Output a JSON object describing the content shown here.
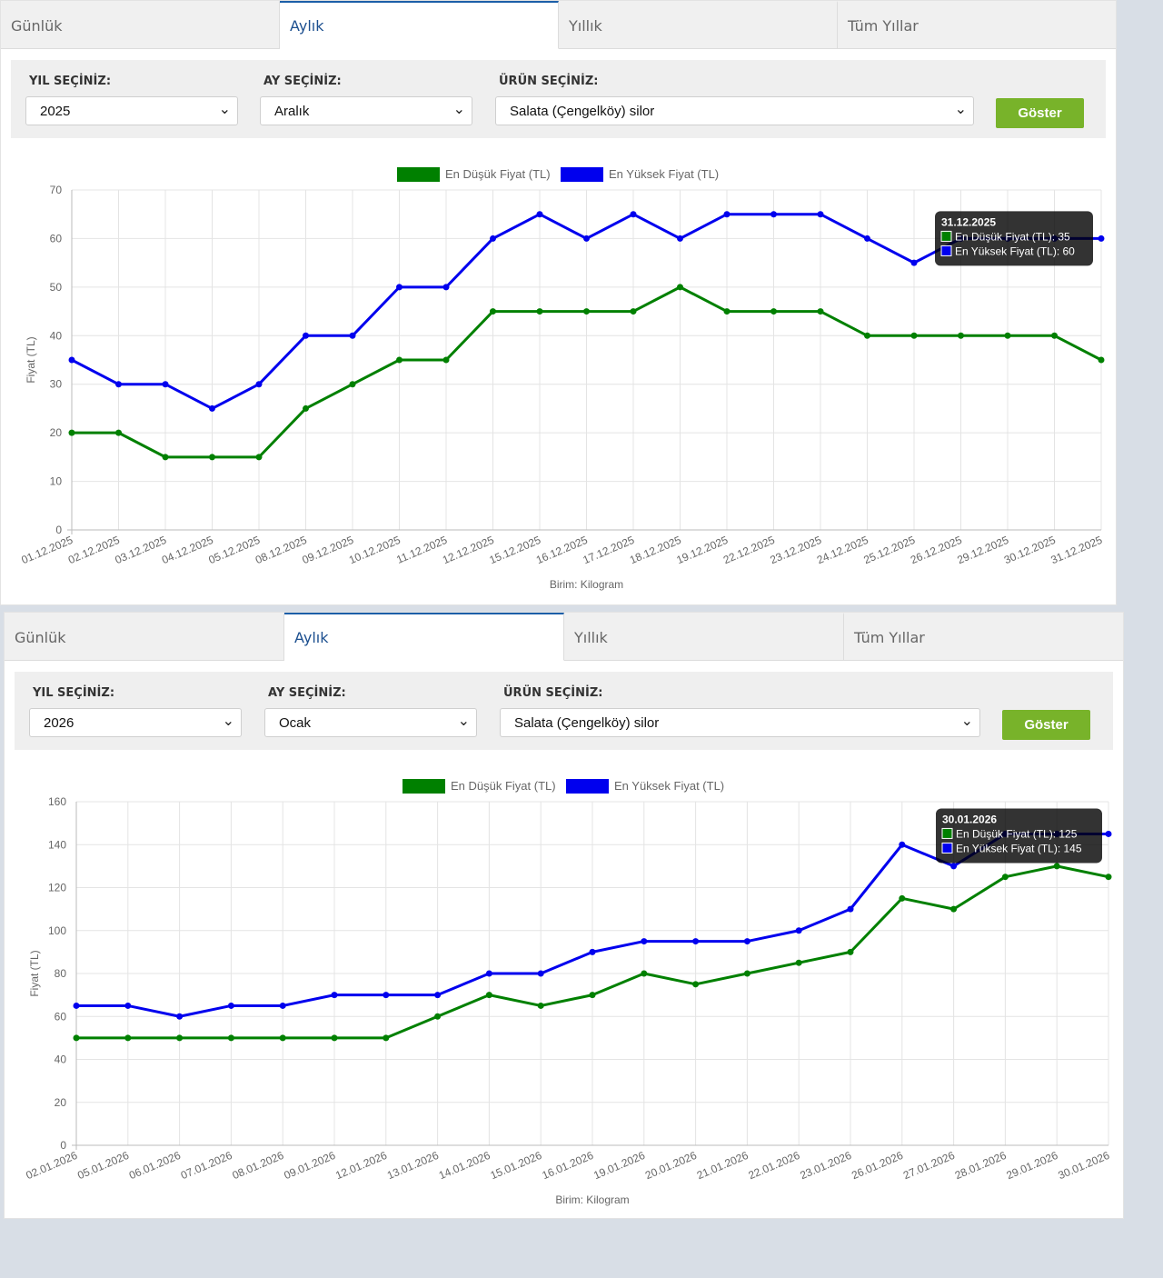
{
  "panels": [
    {
      "tabs": [
        "Günlük",
        "Aylık",
        "Yıllık",
        "Tüm Yıllar"
      ],
      "active_tab": 1,
      "filters": {
        "year_label": "YIL SEÇİNİZ:",
        "year_value": "2025",
        "month_label": "AY SEÇİNİZ:",
        "month_value": "Aralık",
        "product_label": "ÜRÜN SEÇİNİZ:",
        "product_value": "Salata (Çengelköy) silor",
        "button_label": "Göster"
      },
      "chart_data": {
        "type": "line",
        "categories": [
          "01.12.2025",
          "02.12.2025",
          "03.12.2025",
          "04.12.2025",
          "05.12.2025",
          "08.12.2025",
          "09.12.2025",
          "10.12.2025",
          "11.12.2025",
          "12.12.2025",
          "15.12.2025",
          "16.12.2025",
          "17.12.2025",
          "18.12.2025",
          "19.12.2025",
          "22.12.2025",
          "23.12.2025",
          "24.12.2025",
          "25.12.2025",
          "26.12.2025",
          "29.12.2025",
          "30.12.2025",
          "31.12.2025"
        ],
        "series": [
          {
            "name": "En Düşük Fiyat (TL)",
            "color": "#008000",
            "values": [
              20,
              20,
              15,
              15,
              15,
              25,
              30,
              35,
              35,
              45,
              45,
              45,
              45,
              50,
              45,
              45,
              45,
              40,
              40,
              40,
              40,
              40,
              35
            ]
          },
          {
            "name": "En Yüksek Fiyat (TL)",
            "color": "#0000ee",
            "values": [
              35,
              30,
              30,
              25,
              30,
              40,
              40,
              50,
              50,
              60,
              65,
              60,
              65,
              60,
              65,
              65,
              65,
              60,
              55,
              60,
              60,
              60,
              60
            ]
          }
        ],
        "ylabel": "Fiyat (TL)",
        "xlabel": "Birim: Kilogram",
        "ylim": [
          0,
          70
        ],
        "yticks": [
          0,
          10,
          20,
          30,
          40,
          50,
          60,
          70
        ],
        "grid": true,
        "legend": "top-center",
        "tooltip": {
          "index": 22,
          "title": "31.12.2025",
          "lines": [
            "En Düşük Fiyat (TL): 35",
            "En Yüksek Fiyat (TL): 60"
          ]
        }
      }
    },
    {
      "tabs": [
        "Günlük",
        "Aylık",
        "Yıllık",
        "Tüm Yıllar"
      ],
      "active_tab": 1,
      "filters": {
        "year_label": "YIL SEÇİNİZ:",
        "year_value": "2026",
        "month_label": "AY SEÇİNİZ:",
        "month_value": "Ocak",
        "product_label": "ÜRÜN SEÇİNİZ:",
        "product_value": "Salata (Çengelköy) silor",
        "button_label": "Göster"
      },
      "chart_data": {
        "type": "line",
        "categories": [
          "02.01.2026",
          "05.01.2026",
          "06.01.2026",
          "07.01.2026",
          "08.01.2026",
          "09.01.2026",
          "12.01.2026",
          "13.01.2026",
          "14.01.2026",
          "15.01.2026",
          "16.01.2026",
          "19.01.2026",
          "20.01.2026",
          "21.01.2026",
          "22.01.2026",
          "23.01.2026",
          "26.01.2026",
          "27.01.2026",
          "28.01.2026",
          "29.01.2026",
          "30.01.2026"
        ],
        "series": [
          {
            "name": "En Düşük Fiyat (TL)",
            "color": "#008000",
            "values": [
              50,
              50,
              50,
              50,
              50,
              50,
              50,
              60,
              70,
              65,
              70,
              80,
              75,
              80,
              85,
              90,
              115,
              110,
              125,
              130,
              125
            ]
          },
          {
            "name": "En Yüksek Fiyat (TL)",
            "color": "#0000ee",
            "values": [
              65,
              65,
              60,
              65,
              65,
              70,
              70,
              70,
              80,
              80,
              90,
              95,
              95,
              95,
              100,
              110,
              140,
              130,
              145,
              145,
              145
            ]
          }
        ],
        "ylabel": "Fiyat (TL)",
        "xlabel": "Birim: Kilogram",
        "ylim": [
          0,
          160
        ],
        "yticks": [
          0,
          20,
          40,
          60,
          80,
          100,
          120,
          140,
          160
        ],
        "grid": true,
        "legend": "top-center",
        "tooltip": {
          "index": 20,
          "title": "30.01.2026",
          "lines": [
            "En Düşük Fiyat (TL): 125",
            "En Yüksek Fiyat (TL): 145"
          ]
        }
      }
    }
  ]
}
